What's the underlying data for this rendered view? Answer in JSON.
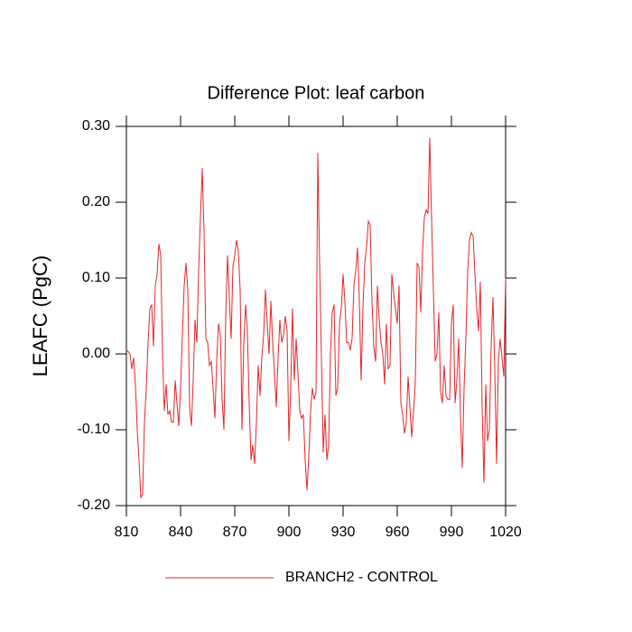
{
  "chart_data": {
    "type": "line",
    "title": "Difference Plot: leaf carbon",
    "ylabel": "LEAFC  (PgC)",
    "x": [
      810,
      811,
      812,
      813,
      814,
      815,
      816,
      817,
      818,
      819,
      820,
      821,
      822,
      823,
      824,
      825,
      826,
      827,
      828,
      829,
      830,
      831,
      832,
      833,
      834,
      835,
      836,
      837,
      838,
      839,
      840,
      841,
      842,
      843,
      844,
      845,
      846,
      847,
      848,
      849,
      850,
      851,
      852,
      853,
      854,
      855,
      856,
      857,
      858,
      859,
      860,
      861,
      862,
      863,
      864,
      865,
      866,
      867,
      868,
      869,
      870,
      871,
      872,
      873,
      874,
      875,
      876,
      877,
      878,
      879,
      880,
      881,
      882,
      883,
      884,
      885,
      886,
      887,
      888,
      889,
      890,
      891,
      892,
      893,
      894,
      895,
      896,
      897,
      898,
      899,
      900,
      901,
      902,
      903,
      904,
      905,
      906,
      907,
      908,
      909,
      910,
      911,
      912,
      913,
      914,
      915,
      916,
      917,
      918,
      919,
      920,
      921,
      922,
      923,
      924,
      925,
      926,
      927,
      928,
      929,
      930,
      931,
      932,
      933,
      934,
      935,
      936,
      937,
      938,
      939,
      940,
      941,
      942,
      943,
      944,
      945,
      946,
      947,
      948,
      949,
      950,
      951,
      952,
      953,
      954,
      955,
      956,
      957,
      958,
      959,
      960,
      961,
      962,
      963,
      964,
      965,
      966,
      967,
      968,
      969,
      970,
      971,
      972,
      973,
      974,
      975,
      976,
      977,
      978,
      979,
      980,
      981,
      982,
      983,
      984,
      985,
      986,
      987,
      988,
      989,
      990,
      991,
      992,
      993,
      994,
      995,
      996,
      997,
      998,
      999,
      1000,
      1001,
      1002,
      1003,
      1004,
      1005,
      1006,
      1007,
      1008,
      1009,
      1010,
      1011,
      1012,
      1013,
      1014,
      1015,
      1016,
      1017,
      1018,
      1019,
      1020
    ],
    "series": [
      {
        "name": "BRANCH2 - CONTROL",
        "color": "#e3262b",
        "values": [
          0.005,
          0.003,
          0.0,
          -0.02,
          -0.005,
          -0.04,
          -0.1,
          -0.14,
          -0.19,
          -0.185,
          -0.09,
          -0.045,
          0.015,
          0.06,
          0.065,
          0.01,
          0.09,
          0.105,
          0.145,
          0.13,
          0.0,
          -0.075,
          -0.04,
          -0.08,
          -0.075,
          -0.09,
          -0.09,
          -0.035,
          -0.065,
          -0.095,
          -0.045,
          0.025,
          0.09,
          0.12,
          0.085,
          -0.07,
          -0.095,
          -0.035,
          0.045,
          0.015,
          0.11,
          0.18,
          0.245,
          0.16,
          0.02,
          0.015,
          -0.015,
          -0.01,
          -0.045,
          -0.085,
          -0.01,
          0.04,
          0.025,
          -0.06,
          -0.1,
          0.05,
          0.13,
          0.075,
          0.02,
          0.115,
          0.13,
          0.15,
          0.135,
          0.085,
          -0.1,
          0.015,
          0.065,
          0.03,
          -0.065,
          -0.14,
          -0.12,
          -0.145,
          -0.09,
          -0.015,
          -0.055,
          -0.005,
          0.025,
          0.085,
          0.04,
          0.0,
          0.07,
          0.015,
          -0.025,
          -0.07,
          -0.005,
          0.045,
          0.015,
          0.025,
          0.05,
          0.03,
          -0.115,
          -0.045,
          0.06,
          -0.035,
          0.02,
          -0.025,
          -0.075,
          -0.085,
          -0.08,
          -0.14,
          -0.18,
          -0.135,
          -0.075,
          -0.045,
          -0.06,
          -0.05,
          0.265,
          0.12,
          -0.005,
          -0.13,
          -0.08,
          -0.14,
          -0.12,
          0.0,
          0.055,
          0.065,
          -0.055,
          -0.045,
          0.04,
          0.06,
          0.105,
          0.07,
          0.015,
          0.015,
          0.005,
          0.02,
          0.09,
          0.11,
          0.14,
          0.07,
          -0.035,
          0.06,
          0.12,
          0.14,
          0.175,
          0.17,
          0.07,
          0.01,
          -0.01,
          0.09,
          0.045,
          0.015,
          0.0,
          -0.04,
          0.04,
          -0.02,
          -0.015,
          0.105,
          0.08,
          0.06,
          0.04,
          0.09,
          -0.065,
          -0.08,
          -0.105,
          -0.09,
          -0.03,
          -0.07,
          -0.11,
          -0.075,
          -0.04,
          0.12,
          0.115,
          0.055,
          0.135,
          0.18,
          0.19,
          0.185,
          0.285,
          0.18,
          0.085,
          -0.01,
          0.0,
          0.055,
          -0.05,
          -0.065,
          -0.015,
          -0.055,
          -0.06,
          -0.06,
          0.04,
          0.065,
          -0.065,
          -0.035,
          0.02,
          -0.08,
          -0.15,
          -0.045,
          0.02,
          0.11,
          0.15,
          0.16,
          0.155,
          0.105,
          0.06,
          0.03,
          0.095,
          -0.07,
          -0.17,
          -0.04,
          -0.115,
          -0.1,
          0.01,
          0.075,
          -0.02,
          -0.145,
          -0.01,
          0.02,
          -0.005,
          -0.03,
          0.1
        ]
      }
    ],
    "xlim": [
      810,
      1020
    ],
    "ylim": [
      -0.2,
      0.3
    ],
    "xticks": [
      810,
      840,
      870,
      900,
      930,
      960,
      990,
      1020
    ],
    "yticks": [
      {
        "value": -0.2,
        "label": "-0.20"
      },
      {
        "value": -0.1,
        "label": "-0.10"
      },
      {
        "value": 0,
        "label": "0.00"
      },
      {
        "value": 0.1,
        "label": "0.10"
      },
      {
        "value": 0.2,
        "label": "0.20"
      },
      {
        "value": 0.3,
        "label": "0.30"
      }
    ],
    "legend": "bottom"
  }
}
